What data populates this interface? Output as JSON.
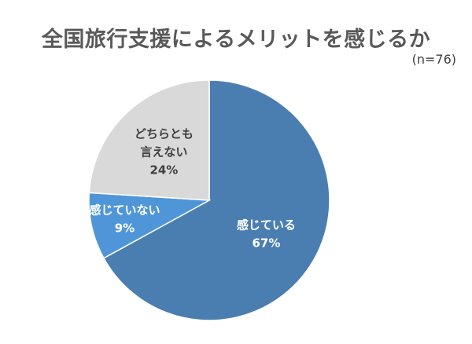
{
  "chart_data": {
    "type": "pie",
    "title": "全国旅行支援によるメリットを感じるか",
    "subtitle": "(n=76)",
    "slices": [
      {
        "label": [
          "感じている"
        ],
        "value": 67,
        "display": "67%",
        "color": "#4a7eb1",
        "label_color": "#ffffff"
      },
      {
        "label": [
          "感じていない"
        ],
        "value": 9,
        "display": "9%",
        "color": "#4f96d9",
        "label_color": "#ffffff"
      },
      {
        "label": [
          "どちらとも",
          "言えない"
        ],
        "value": 24,
        "display": "24%",
        "color": "#d9d9d9",
        "label_color": "#404040"
      }
    ]
  }
}
